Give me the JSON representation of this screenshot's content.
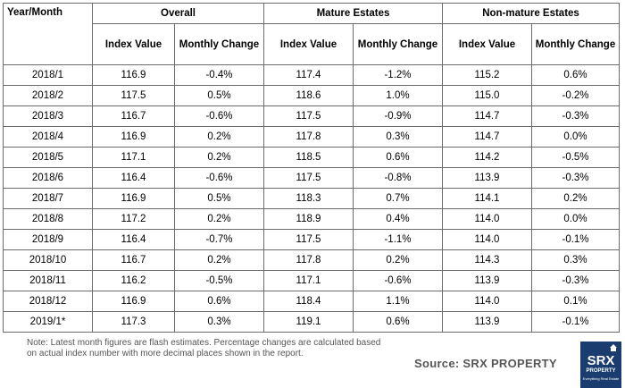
{
  "table": {
    "header": {
      "year_month": "Year/Month",
      "groups": [
        "Overall",
        "Mature Estates",
        "Non-mature Estates"
      ],
      "index_value": "Index Value",
      "monthly_change": "Monthly Change"
    },
    "rows": [
      [
        "2018/1",
        "116.9",
        "-0.4%",
        "117.4",
        "-1.2%",
        "115.2",
        "0.6%"
      ],
      [
        "2018/2",
        "117.5",
        "0.5%",
        "118.6",
        "1.0%",
        "115.0",
        "-0.2%"
      ],
      [
        "2018/3",
        "116.7",
        "-0.6%",
        "117.5",
        "-0.9%",
        "114.7",
        "-0.3%"
      ],
      [
        "2018/4",
        "116.9",
        "0.2%",
        "117.8",
        "0.3%",
        "114.7",
        "0.0%"
      ],
      [
        "2018/5",
        "117.1",
        "0.2%",
        "118.5",
        "0.6%",
        "114.2",
        "-0.5%"
      ],
      [
        "2018/6",
        "116.4",
        "-0.6%",
        "117.5",
        "-0.8%",
        "113.9",
        "-0.3%"
      ],
      [
        "2018/7",
        "116.9",
        "0.5%",
        "118.3",
        "0.7%",
        "114.1",
        "0.2%"
      ],
      [
        "2018/8",
        "117.2",
        "0.2%",
        "118.9",
        "0.4%",
        "114.0",
        "0.0%"
      ],
      [
        "2018/9",
        "116.4",
        "-0.7%",
        "117.5",
        "-1.1%",
        "114.0",
        "-0.1%"
      ],
      [
        "2018/10",
        "116.7",
        "0.2%",
        "117.8",
        "0.2%",
        "114.3",
        "0.3%"
      ],
      [
        "2018/11",
        "116.2",
        "-0.5%",
        "117.1",
        "-0.6%",
        "113.9",
        "-0.3%"
      ],
      [
        "2018/12",
        "116.9",
        "0.6%",
        "118.4",
        "1.1%",
        "114.0",
        "0.1%"
      ],
      [
        "2019/1*",
        "117.3",
        "0.3%",
        "119.1",
        "0.6%",
        "113.9",
        "-0.1%"
      ]
    ]
  },
  "footer": {
    "note_line1": "Note: Latest month figures are flash estimates. Percentage changes are calculated based",
    "note_line2": "on actual index number with more decimal places shown in the report.",
    "source": "Source:  SRX PROPERTY"
  },
  "logo": {
    "big": "SRX",
    "name": "PROPERTY",
    "tagline": "Everything Real Estate",
    "color": "#1a3c6e"
  }
}
